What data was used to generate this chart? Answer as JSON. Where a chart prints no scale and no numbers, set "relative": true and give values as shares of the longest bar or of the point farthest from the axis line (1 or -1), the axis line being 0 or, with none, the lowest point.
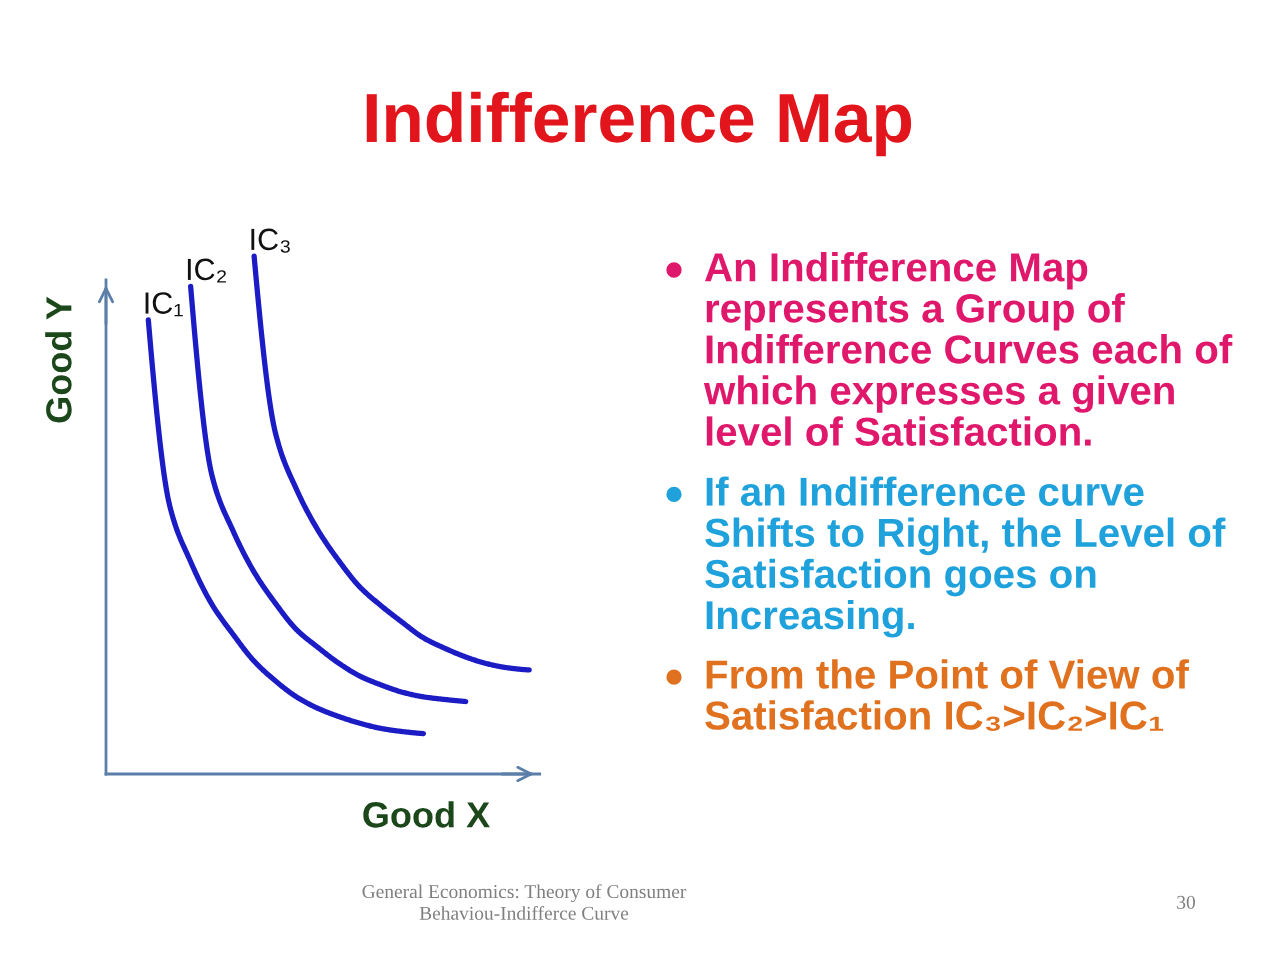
{
  "chart_data": {
    "type": "line",
    "title": "Indifference Map",
    "xlabel": "Good X",
    "ylabel": "Good Y",
    "relative": true,
    "categories": [
      null,
      null,
      null,
      null,
      null,
      null,
      null,
      null,
      null,
      null,
      null,
      null,
      null,
      null,
      null,
      null,
      null,
      null,
      null
    ],
    "series": [
      {
        "name": "IC₁",
        "color": "#1c1cc4",
        "values": [
          0.877,
          0.52,
          0.41,
          0.328,
          0.27,
          0.218,
          0.18,
          0.149,
          0.127,
          0.111,
          0.098,
          0.088,
          0.082,
          0.078,
          null,
          null,
          null,
          null,
          null
        ]
      },
      {
        "name": "IC₂",
        "color": "#1c1cc4",
        "values": [
          null,
          null,
          0.942,
          0.578,
          0.47,
          0.39,
          0.33,
          0.279,
          0.245,
          0.214,
          0.189,
          0.172,
          0.158,
          0.149,
          0.144,
          0.14,
          null,
          null,
          null
        ]
      },
      {
        "name": "IC₃",
        "color": "#1c1cc4",
        "values": [
          null,
          null,
          null,
          null,
          null,
          1.0,
          0.66,
          0.55,
          0.472,
          0.412,
          0.361,
          0.325,
          0.293,
          0.263,
          0.243,
          0.226,
          0.213,
          0.205,
          0.201
        ]
      }
    ],
    "annotations": [
      "An Indifference Map represents a Group of Indifference Curves each of which expresses a given level of Satisfaction.",
      "If an Indifference curve Shifts to Right, the Level of Satisfaction goes on Increasing.",
      "From the Point of View of Satisfaction IC₃>IC₂>IC₁",
      "General Economics: Theory of Consumer\nBehaviou-Indifferce Curve",
      "30"
    ]
  }
}
